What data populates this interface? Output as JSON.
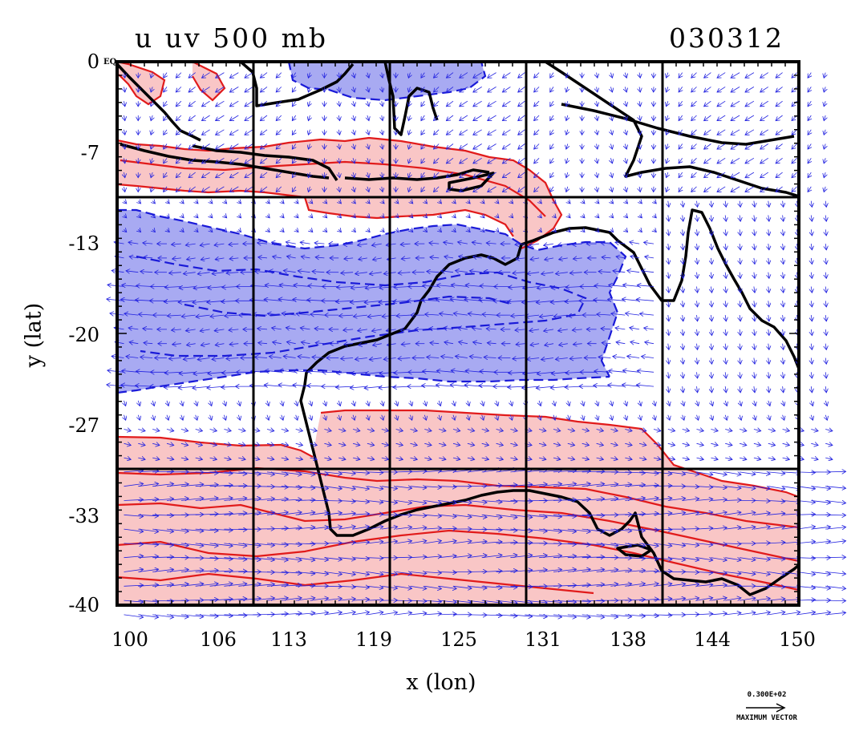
{
  "header": {
    "title": "u uv 500 mb",
    "date": "030312"
  },
  "axes": {
    "xlabel": "x (lon)",
    "ylabel": "y (lat)",
    "y_ticks": [
      "0",
      "-7",
      "-13",
      "-20",
      "-27",
      "-33",
      "-40"
    ],
    "x_ticks": [
      "100",
      "106",
      "113",
      "119",
      "125",
      "131",
      "138",
      "144",
      "150"
    ],
    "equator_tag": "EQ",
    "xlim": [
      100,
      150
    ],
    "ylim": [
      -40,
      0
    ]
  },
  "legend": {
    "vector_magnitude": "0.300E+02",
    "vector_label": "MAXIMUM VECTOR"
  },
  "colors": {
    "westerly_fill": "#f9c6c6",
    "westerly_contour": "#e11b1b",
    "easterly_fill": "#a8aaf2",
    "easterly_contour": "#1a1ad8",
    "wind_vectors": "#2323e0",
    "coastline": "#000000"
  },
  "chart_data": {
    "type": "map",
    "field": "u wind component with uv wind vectors",
    "level": "500 mb",
    "xlim": [
      100,
      150
    ],
    "ylim": [
      -40,
      0
    ],
    "grid": true,
    "grid_lines": {
      "lon": [
        110,
        120,
        130,
        140
      ],
      "lat": [
        -10,
        -30
      ]
    },
    "shading": [
      {
        "sign": "positive",
        "color": "red",
        "lat_band": [
          -12,
          -5
        ],
        "lon_range": [
          100,
          133
        ]
      },
      {
        "sign": "negative",
        "color": "blue",
        "lat_band": [
          -24,
          -10
        ],
        "lon_range": [
          100,
          138
        ]
      },
      {
        "sign": "positive",
        "color": "red",
        "lat_band": [
          -40,
          -26
        ],
        "lon_range": [
          100,
          150
        ]
      }
    ],
    "vector_reference": {
      "magnitude": "0.300E+02",
      "label": "MAXIMUM VECTOR"
    }
  }
}
